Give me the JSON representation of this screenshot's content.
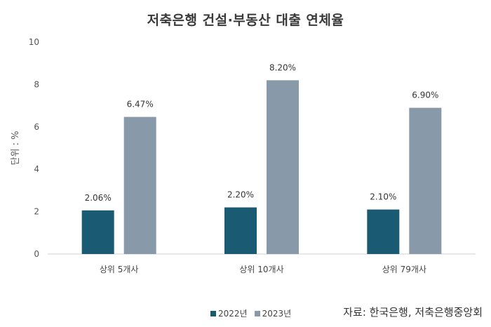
{
  "title": "저축은행 건설·부동산 대출 연체율",
  "chart_data": {
    "type": "bar",
    "title": "저축은행 건설·부동산 대출 연체율",
    "ylabel": "단위 : %",
    "xlabel": "",
    "ylim": [
      0,
      10
    ],
    "yticks": [
      0,
      2,
      4,
      6,
      8,
      10
    ],
    "categories": [
      "상위 5개사",
      "상위 10개사",
      "상위 79개사"
    ],
    "series": [
      {
        "name": "2022년",
        "values": [
          2.06,
          2.2,
          2.1
        ],
        "labels": [
          "2.06%",
          "2.20%",
          "2.10%"
        ],
        "color": "#1a5a73"
      },
      {
        "name": "2023년",
        "values": [
          6.47,
          8.2,
          6.9
        ],
        "labels": [
          "6.47%",
          "8.20%",
          "6.90%"
        ],
        "color": "#8899aa"
      }
    ],
    "grid": false,
    "legend_position": "bottom"
  },
  "source": "자료: 한국은행, 저축은행중앙회"
}
